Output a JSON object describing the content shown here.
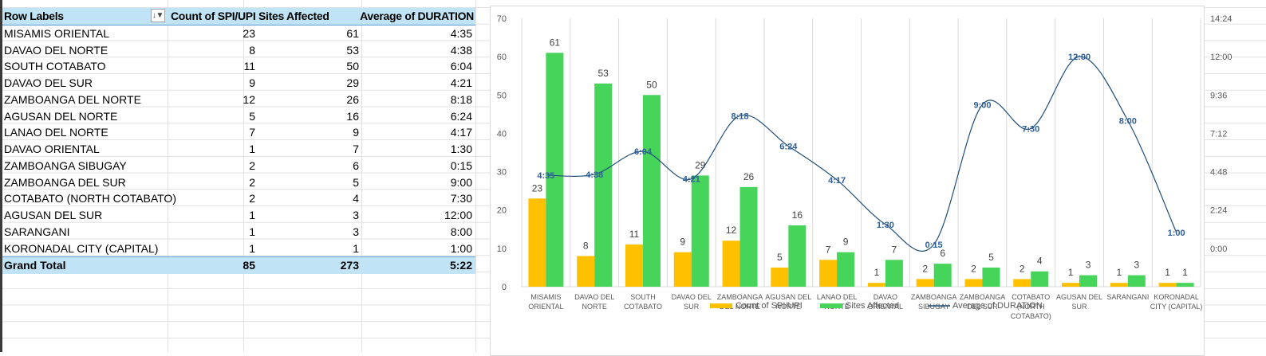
{
  "pivot_table": {
    "headers": {
      "row_labels": "Row Labels",
      "count_spi_upi": "Count of SPI/UPI",
      "sites_affected": "Sites Affected",
      "avg_duration": "Average of DURATION"
    },
    "filter_icon": "filter-sort-icon",
    "rows": [
      {
        "label": "MISAMIS ORIENTAL",
        "count": "23",
        "sites": "61",
        "duration": "4:35"
      },
      {
        "label": "DAVAO DEL NORTE",
        "count": "8",
        "sites": "53",
        "duration": "4:38"
      },
      {
        "label": "SOUTH COTABATO",
        "count": "11",
        "sites": "50",
        "duration": "6:04"
      },
      {
        "label": "DAVAO DEL SUR",
        "count": "9",
        "sites": "29",
        "duration": "4:21"
      },
      {
        "label": "ZAMBOANGA DEL NORTE",
        "count": "12",
        "sites": "26",
        "duration": "8:18"
      },
      {
        "label": "AGUSAN DEL NORTE",
        "count": "5",
        "sites": "16",
        "duration": "6:24"
      },
      {
        "label": "LANAO DEL NORTE",
        "count": "7",
        "sites": "9",
        "duration": "4:17"
      },
      {
        "label": "DAVAO ORIENTAL",
        "count": "1",
        "sites": "7",
        "duration": "1:30"
      },
      {
        "label": "ZAMBOANGA SIBUGAY",
        "count": "2",
        "sites": "6",
        "duration": "0:15"
      },
      {
        "label": "ZAMBOANGA DEL SUR",
        "count": "2",
        "sites": "5",
        "duration": "9:00"
      },
      {
        "label": "COTABATO (NORTH COTABATO)",
        "count": "2",
        "sites": "4",
        "duration": "7:30"
      },
      {
        "label": "AGUSAN DEL SUR",
        "count": "1",
        "sites": "3",
        "duration": "12:00"
      },
      {
        "label": "SARANGANI",
        "count": "1",
        "sites": "3",
        "duration": "8:00"
      },
      {
        "label": "KORONADAL CITY (CAPITAL)",
        "count": "1",
        "sites": "1",
        "duration": "1:00"
      }
    ],
    "grand_total": {
      "label": "Grand Total",
      "count": "85",
      "sites": "273",
      "duration": "5:22"
    }
  },
  "chart_data": {
    "type": "bar",
    "title": "",
    "categories": [
      [
        "MISAMIS",
        "ORIENTAL"
      ],
      [
        "DAVAO DEL",
        "NORTE"
      ],
      [
        "SOUTH",
        "COTABATO"
      ],
      [
        "DAVAO DEL",
        "SUR"
      ],
      [
        "ZAMBOANGA",
        "DEL NORTE"
      ],
      [
        "AGUSAN DEL",
        "NORTE"
      ],
      [
        "LANAO DEL",
        "NORTE"
      ],
      [
        "DAVAO",
        "ORIENTAL"
      ],
      [
        "ZAMBOANGA",
        "SIBUGAY"
      ],
      [
        "ZAMBOANGA",
        "DEL SUR"
      ],
      [
        "COTABATO",
        "(NORTH",
        "COTABATO)"
      ],
      [
        "AGUSAN DEL",
        "SUR"
      ],
      [
        "SARANGANI"
      ],
      [
        "KORONADAL",
        "CITY (CAPITAL)"
      ]
    ],
    "series": [
      {
        "name": "Count of SPI/UPI",
        "type": "bar",
        "axis": "left",
        "color": "#ffc000",
        "values": [
          23,
          8,
          11,
          9,
          12,
          5,
          7,
          1,
          2,
          2,
          2,
          1,
          1,
          1
        ]
      },
      {
        "name": "Sites Affected",
        "type": "bar",
        "axis": "left",
        "color": "#47d45a",
        "values": [
          61,
          53,
          50,
          29,
          26,
          16,
          9,
          7,
          6,
          5,
          4,
          3,
          3,
          1
        ]
      },
      {
        "name": "Average of DURATION",
        "type": "line",
        "smooth": true,
        "axis": "right",
        "color": "#1f4e79",
        "values_hours": [
          4.5833,
          4.6333,
          6.0667,
          4.35,
          8.3,
          6.4,
          4.2833,
          1.5,
          0.25,
          9.0,
          7.5,
          12.0,
          8.0,
          1.0
        ],
        "labels": [
          "4:35",
          "4:38",
          "6:04",
          "4:21",
          "8:18",
          "6:24",
          "4:17",
          "1:30",
          "0:15",
          "9:00",
          "7:30",
          "12:00",
          "8:00",
          "1:00"
        ]
      }
    ],
    "y_left": {
      "ylim": [
        0,
        70
      ],
      "ticks": [
        "0",
        "10",
        "20",
        "30",
        "40",
        "50",
        "60",
        "70"
      ]
    },
    "y_right": {
      "ylim_hours": [
        -2.4,
        14.4
      ],
      "ticks_hours": [
        0,
        2.4,
        4.8,
        7.2,
        9.6,
        12.0,
        14.4
      ],
      "tick_labels": [
        "0:00",
        "2:24",
        "4:48",
        "7:12",
        "9:36",
        "12:00",
        "14:24"
      ]
    },
    "xlabel": "",
    "ylabel": "",
    "grid": "vertical category gridlines",
    "legend": {
      "position": "bottom",
      "entries": [
        "Count of SPI/UPI",
        "Sites Affected",
        "Average of DURATION"
      ]
    }
  }
}
